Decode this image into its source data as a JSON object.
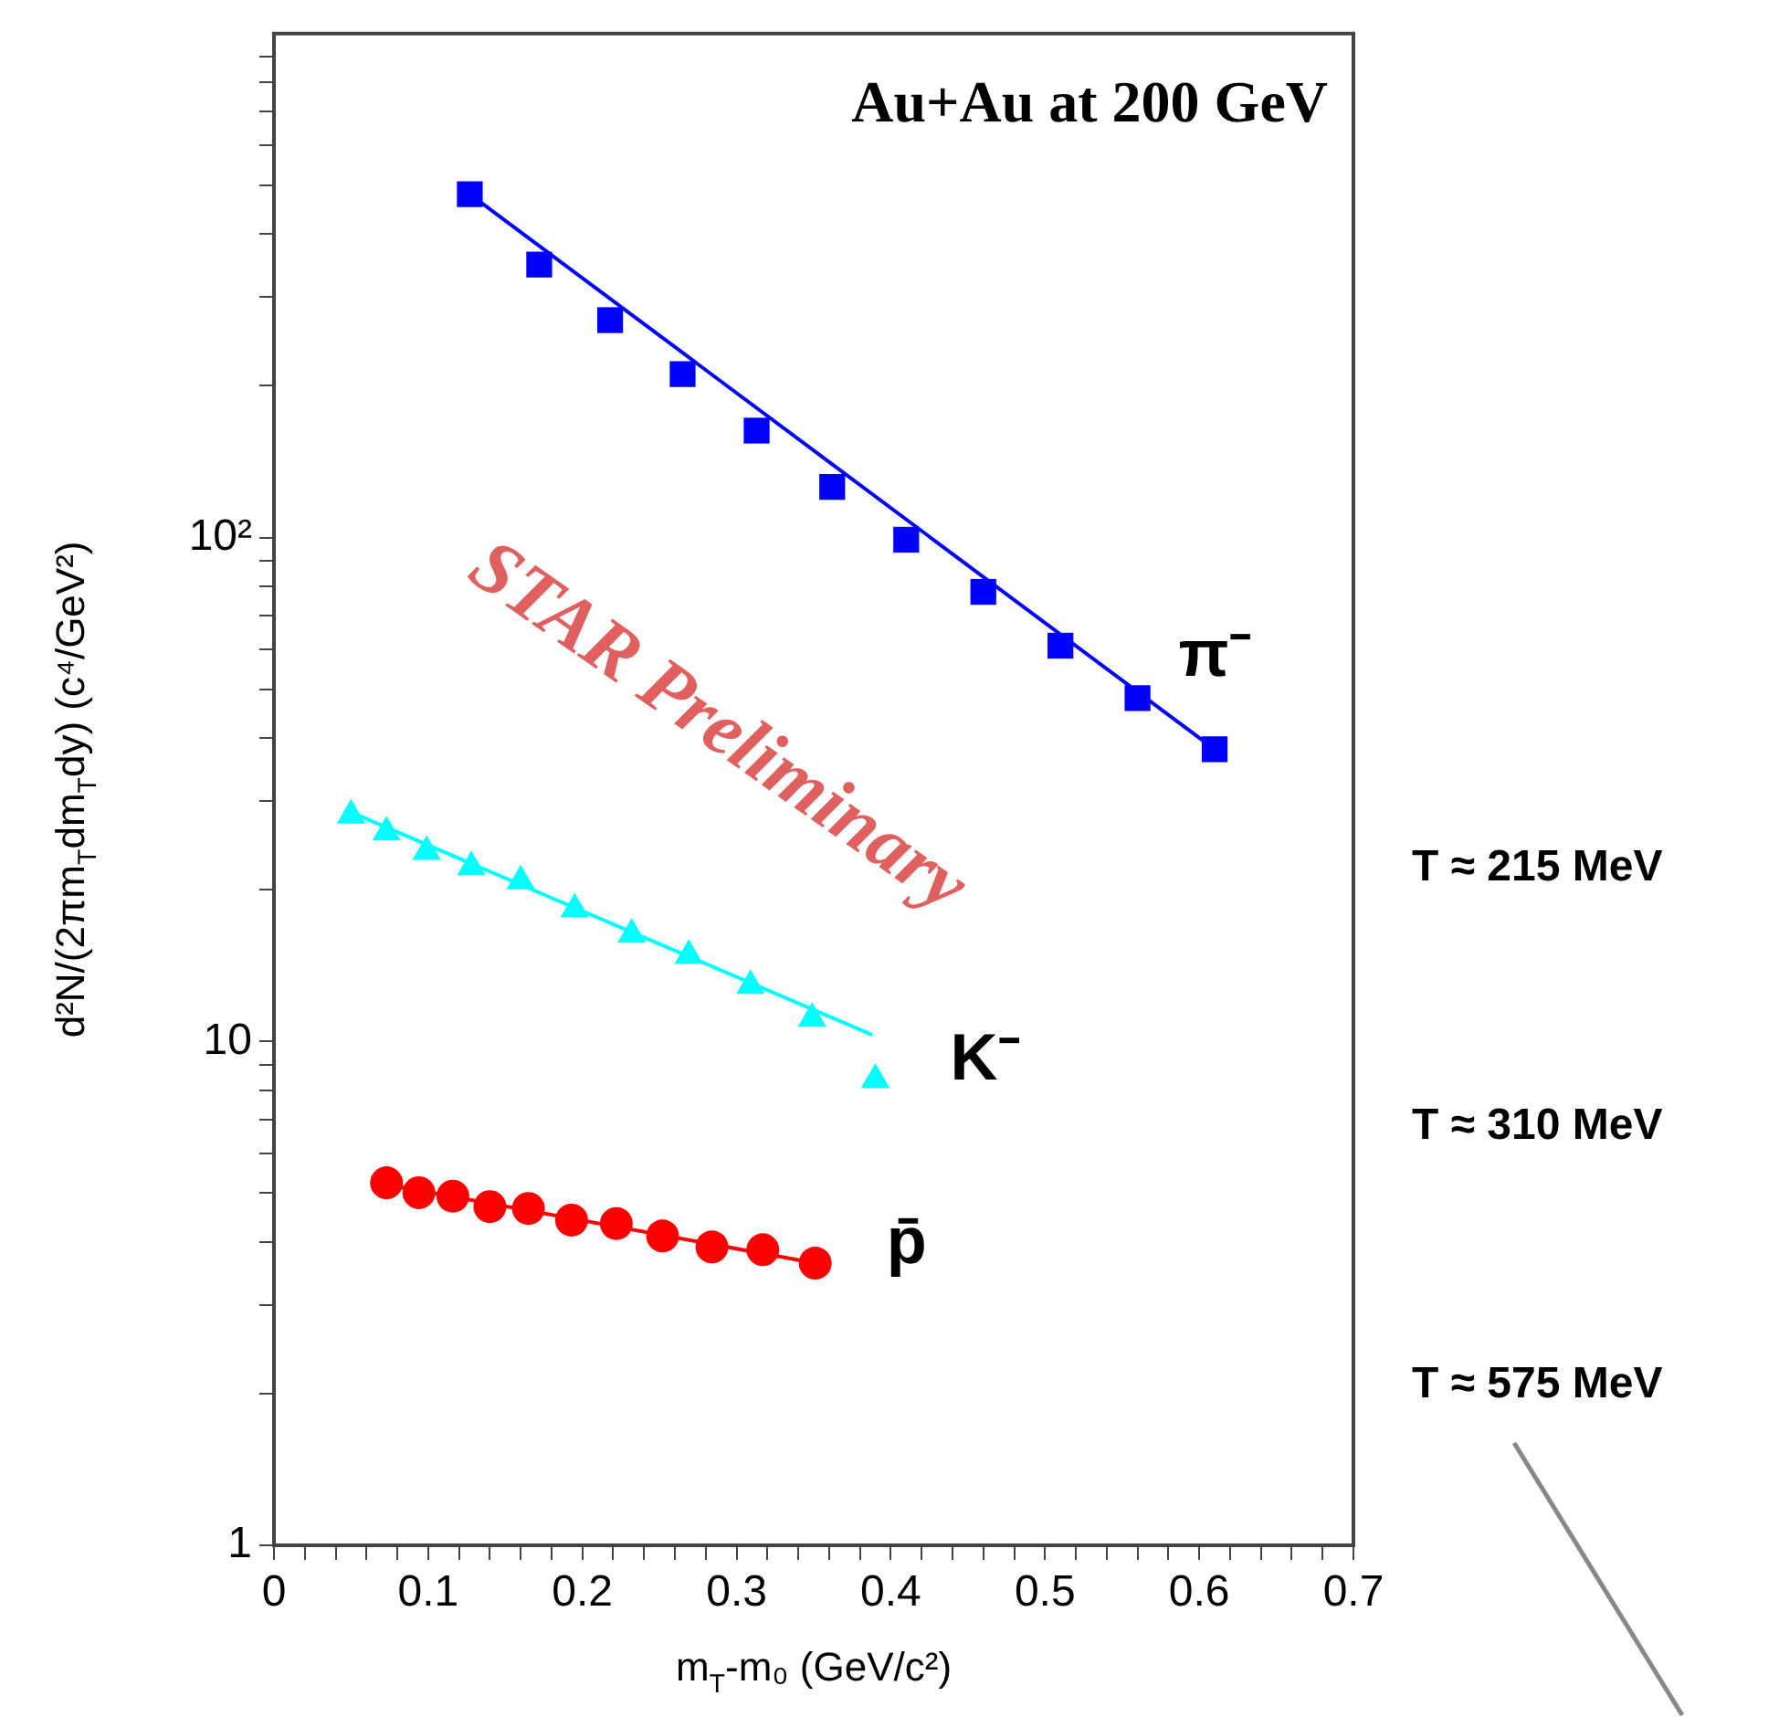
{
  "chart_data": {
    "type": "scatter",
    "xlabel": "m$_{T}$-m₀ (GeV/c²)",
    "ylabel": "d²N/(2πm$_{T}$dm$_{T}$dy) (c⁴/GeV²)",
    "log": "y",
    "grid": false,
    "legend": false,
    "xlim": [
      0,
      0.7
    ],
    "ylim": [
      1,
      1000
    ],
    "xticks": [
      0,
      {
        "value": 0.02,
        "label": null
      },
      {
        "value": 0.04,
        "label": null
      },
      {
        "value": 0.06,
        "label": null
      },
      {
        "value": 0.08,
        "label": null
      },
      0.1,
      {
        "value": 0.12,
        "label": null
      },
      {
        "value": 0.14,
        "label": null
      },
      {
        "value": 0.16,
        "label": null
      },
      {
        "value": 0.18,
        "label": null
      },
      0.2,
      {
        "value": 0.22,
        "label": null
      },
      {
        "value": 0.24,
        "label": null
      },
      {
        "value": 0.26,
        "label": null
      },
      {
        "value": 0.28,
        "label": null
      },
      0.3,
      {
        "value": 0.32,
        "label": null
      },
      {
        "value": 0.34,
        "label": null
      },
      {
        "value": 0.36,
        "label": null
      },
      {
        "value": 0.38,
        "label": null
      },
      0.4,
      {
        "value": 0.42,
        "label": null
      },
      {
        "value": 0.44,
        "label": null
      },
      {
        "value": 0.46,
        "label": null
      },
      {
        "value": 0.48,
        "label": null
      },
      0.5,
      {
        "value": 0.52,
        "label": null
      },
      {
        "value": 0.54,
        "label": null
      },
      {
        "value": 0.56,
        "label": null
      },
      {
        "value": 0.58,
        "label": null
      },
      0.6,
      {
        "value": 0.62,
        "label": null
      },
      {
        "value": 0.64,
        "label": null
      },
      {
        "value": 0.66,
        "label": null
      },
      {
        "value": 0.68,
        "label": null
      },
      0.7
    ],
    "yticks": [
      1,
      {
        "value": 2,
        "label": null
      },
      {
        "value": 3,
        "label": null
      },
      {
        "value": 4,
        "label": null
      },
      {
        "value": 5,
        "label": null
      },
      {
        "value": 6,
        "label": null
      },
      {
        "value": 7,
        "label": null
      },
      {
        "value": 8,
        "label": null
      },
      {
        "value": 9,
        "label": null
      },
      10,
      {
        "value": 20,
        "label": null
      },
      {
        "value": 30,
        "label": null
      },
      {
        "value": 40,
        "label": null
      },
      {
        "value": 50,
        "label": null
      },
      {
        "value": 60,
        "label": null
      },
      {
        "value": 70,
        "label": null
      },
      {
        "value": 80,
        "label": null
      },
      {
        "value": 90,
        "label": null
      },
      {
        "value": 100,
        "label": "10²"
      },
      {
        "value": 200,
        "label": null
      },
      {
        "value": 300,
        "label": null
      },
      {
        "value": 400,
        "label": null
      },
      {
        "value": 500,
        "label": null
      },
      {
        "value": 600,
        "label": null
      },
      {
        "value": 700,
        "label": null
      },
      {
        "value": 800,
        "label": null
      },
      {
        "value": 900,
        "label": null
      }
    ],
    "series": [
      {
        "name": "π⁻",
        "marker": "square",
        "color": "#0000ff",
        "x": [
          0.127,
          0.172,
          0.218,
          0.265,
          0.313,
          0.362,
          0.41,
          0.46,
          0.51,
          0.56,
          0.61
        ],
        "values": [
          480,
          348,
          270,
          211,
          163,
          126,
          99,
          78,
          61,
          48,
          38
        ]
      },
      {
        "name": "K⁻",
        "marker": "triangle",
        "color": "#00ffff",
        "x": [
          0.05,
          0.073,
          0.099,
          0.128,
          0.16,
          0.195,
          0.232,
          0.269,
          0.309,
          0.349,
          0.39
        ],
        "values": [
          28.1,
          26,
          23.8,
          22.2,
          20.8,
          18.3,
          16.3,
          14.8,
          12.9,
          11.1,
          8.4
        ]
      },
      {
        "name": "p̄",
        "marker": "circle",
        "color": "#ff0000",
        "x": [
          0.073,
          0.094,
          0.116,
          0.14,
          0.165,
          0.193,
          0.222,
          0.252,
          0.284,
          0.317,
          0.351
        ],
        "values": [
          5.24,
          5.01,
          4.93,
          4.7,
          4.66,
          4.42,
          4.35,
          4.11,
          3.91,
          3.86,
          3.63
        ]
      },
      {
        "type": "line",
        "marker": "none",
        "color": "#0000ff",
        "x": [
          0.127,
          0.61
        ],
        "values": [
          480,
          38
        ]
      },
      {
        "type": "line",
        "marker": "none",
        "color": "#00ffff",
        "x": [
          0.05,
          0.388
        ],
        "values": [
          28.5,
          10.3
        ]
      },
      {
        "type": "line",
        "marker": "none",
        "color": "#ff0000",
        "x": [
          0.073,
          0.351
        ],
        "values": [
          5.2,
          3.63
        ]
      }
    ],
    "annotations": [
      "Au+Au at 200 GeV",
      "STAR Preliminary",
      "T ≈ 215 MeV",
      "T ≈ 310 MeV",
      "T ≈ 575 MeV"
    ]
  }
}
